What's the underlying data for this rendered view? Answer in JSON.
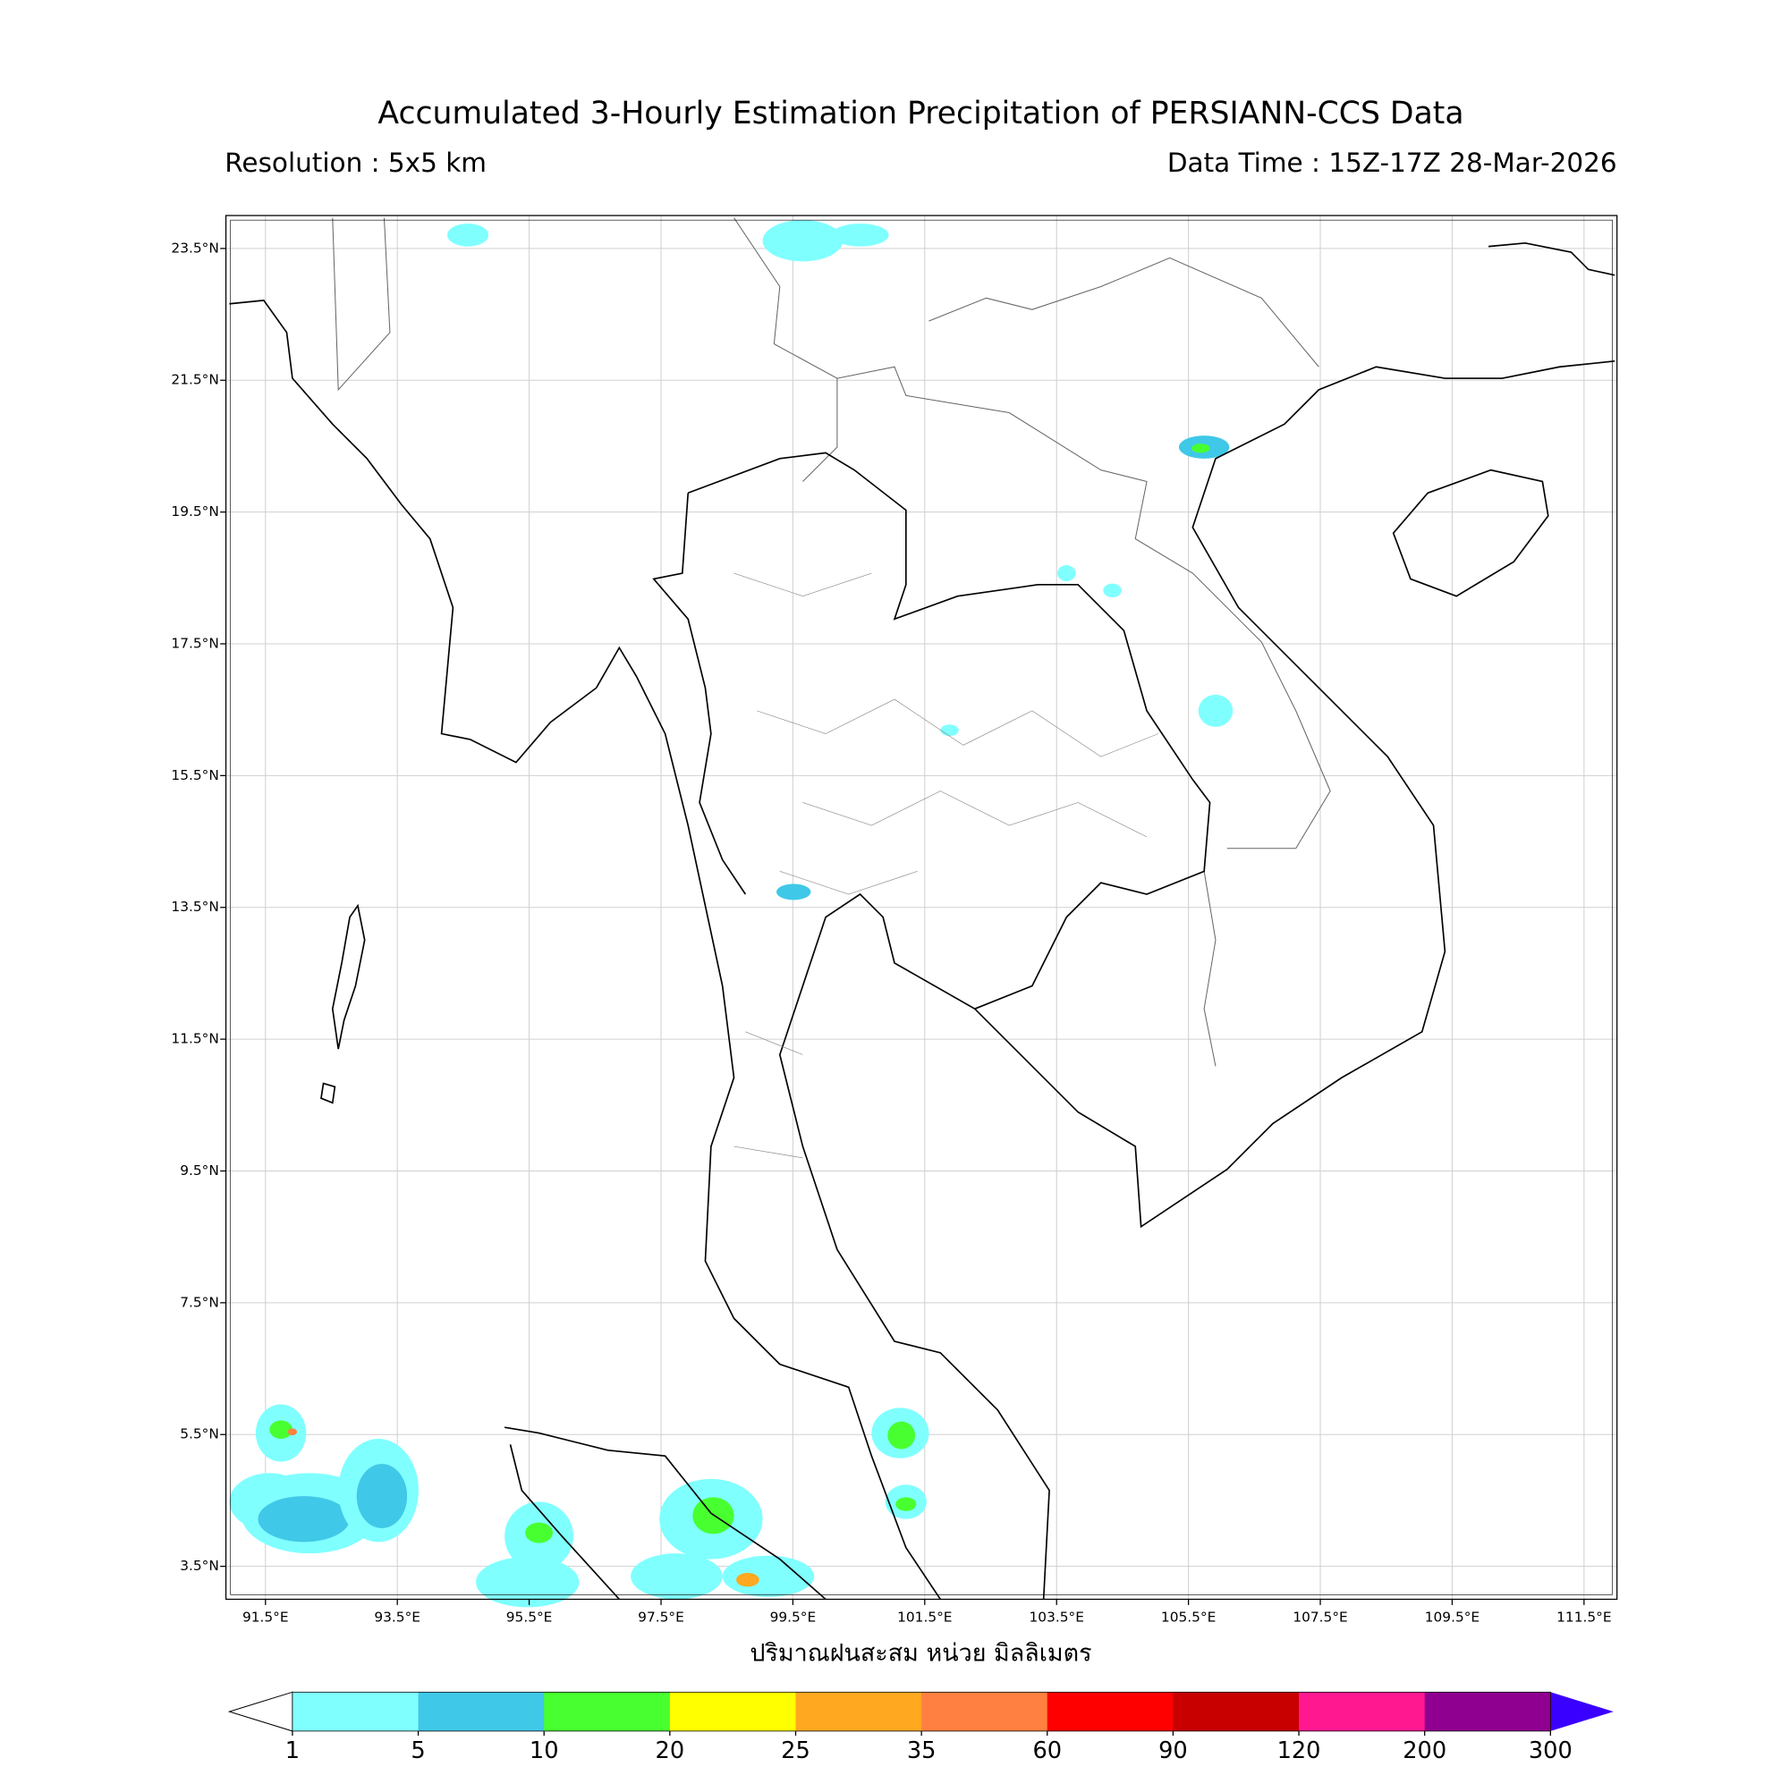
{
  "map": {
    "title": "Accumulated 3-Hourly Estimation Precipitation of PERSIANN-CCS Data",
    "resolution": "Resolution : 5x5 km",
    "data_time": "Data Time : 15Z-17Z 28-Mar-2026",
    "xlim": [
      90.9,
      112.0
    ],
    "ylim": [
      3.0,
      24.0
    ],
    "xticks": [
      {
        "value": 91.5,
        "label": "91.5°E"
      },
      {
        "value": 93.5,
        "label": "93.5°E"
      },
      {
        "value": 95.5,
        "label": "95.5°E"
      },
      {
        "value": 97.5,
        "label": "97.5°E"
      },
      {
        "value": 99.5,
        "label": "99.5°E"
      },
      {
        "value": 101.5,
        "label": "101.5°E"
      },
      {
        "value": 103.5,
        "label": "103.5°E"
      },
      {
        "value": 105.5,
        "label": "105.5°E"
      },
      {
        "value": 107.5,
        "label": "107.5°E"
      },
      {
        "value": 109.5,
        "label": "109.5°E"
      },
      {
        "value": 111.5,
        "label": "111.5°E"
      }
    ],
    "yticks": [
      {
        "value": 3.5,
        "label": "3.5°N"
      },
      {
        "value": 5.5,
        "label": "5.5°N"
      },
      {
        "value": 7.5,
        "label": "7.5°N"
      },
      {
        "value": 9.5,
        "label": "9.5°N"
      },
      {
        "value": 11.5,
        "label": "11.5°N"
      },
      {
        "value": 13.5,
        "label": "13.5°N"
      },
      {
        "value": 15.5,
        "label": "15.5°N"
      },
      {
        "value": 17.5,
        "label": "17.5°N"
      },
      {
        "value": 19.5,
        "label": "19.5°N"
      },
      {
        "value": 21.5,
        "label": "21.5°N"
      },
      {
        "value": 23.5,
        "label": "23.5°N"
      }
    ],
    "grid": true,
    "xlabel": "ปริมาณฝนสะสม หน่วย มิลลิเมตร",
    "colorbar": {
      "levels": [
        1,
        5,
        10,
        20,
        25,
        35,
        60,
        90,
        120,
        200,
        300
      ],
      "colors": [
        "#80ffff",
        "#40c8e8",
        "#48ff30",
        "#ffff00",
        "#ffa820",
        "#ff8040",
        "#ff0000",
        "#c80000",
        "#ff1890",
        "#900090"
      ],
      "under_color": "#ffffff",
      "over_color": "#3a00ff"
    }
  }
}
